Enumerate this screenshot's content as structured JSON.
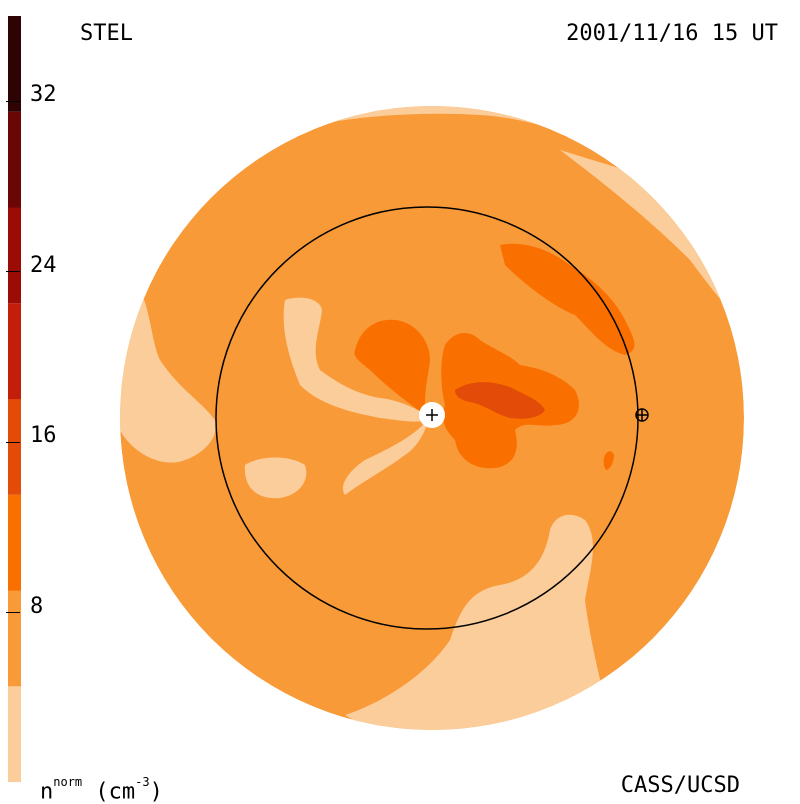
{
  "header": {
    "station": "STEL",
    "timestamp": "2001/11/16 15 UT"
  },
  "footer": {
    "institution": "CASS/UCSD",
    "quantity": "n",
    "quantity_superscript": "norm",
    "unit": "(cm",
    "unit_exponent": "-3",
    "unit_close": ")"
  },
  "colorbar": {
    "ticks": [
      "8",
      "16",
      "24",
      "32"
    ],
    "colors": [
      "#fbcd9b",
      "#f99a38",
      "#fa7000",
      "#e24c08",
      "#c31e0a",
      "#9b0c05",
      "#6b0606",
      "#2e0303"
    ]
  },
  "map": {
    "background_color": "#f99a38",
    "earth_marker": "+",
    "orbit_marker": "⊕"
  }
}
